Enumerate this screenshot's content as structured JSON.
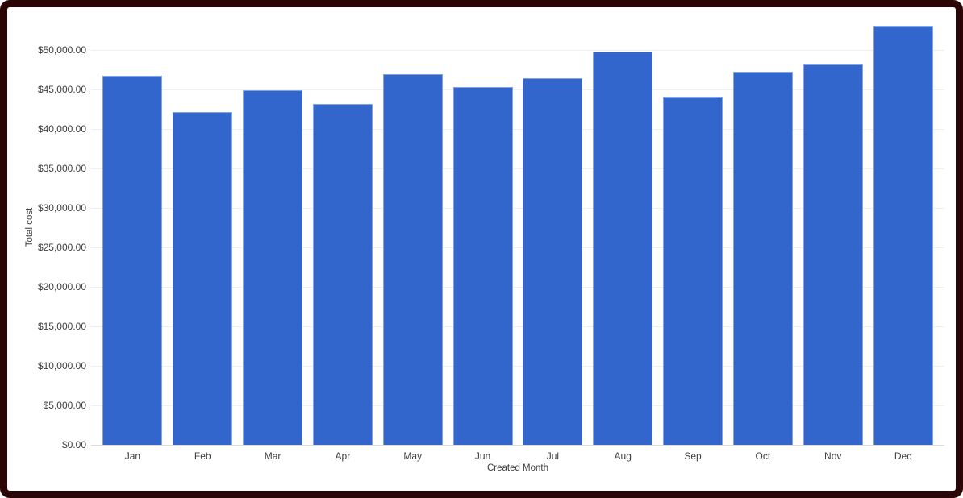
{
  "frame": {
    "border_color": "#2a0606",
    "background": "#ffffff"
  },
  "chart_data": {
    "type": "bar",
    "title": "",
    "xlabel": "Created Month",
    "ylabel": "Total cost",
    "categories": [
      "Jan",
      "Feb",
      "Mar",
      "Apr",
      "May",
      "Jun",
      "Jul",
      "Aug",
      "Sep",
      "Oct",
      "Nov",
      "Dec"
    ],
    "values": [
      46700,
      42100,
      44900,
      43200,
      46900,
      45300,
      46400,
      49800,
      44100,
      47200,
      48200,
      53100
    ],
    "ylim": [
      0,
      55000
    ],
    "grid": true,
    "legend": "none",
    "yticks": [
      {
        "value": 0,
        "label": "$0.00"
      },
      {
        "value": 5000,
        "label": "$5,000.00"
      },
      {
        "value": 10000,
        "label": "$10,000.00"
      },
      {
        "value": 15000,
        "label": "$15,000.00"
      },
      {
        "value": 20000,
        "label": "$20,000.00"
      },
      {
        "value": 25000,
        "label": "$25,000.00"
      },
      {
        "value": 30000,
        "label": "$30,000.00"
      },
      {
        "value": 35000,
        "label": "$35,000.00"
      },
      {
        "value": 40000,
        "label": "$40,000.00"
      },
      {
        "value": 45000,
        "label": "$45,000.00"
      },
      {
        "value": 50000,
        "label": "$50,000.00"
      }
    ],
    "colors": {
      "bar": "#3366cc",
      "gridline": "#efefef",
      "baseline": "#dcdcdc",
      "text": "#3f3f3f"
    }
  }
}
